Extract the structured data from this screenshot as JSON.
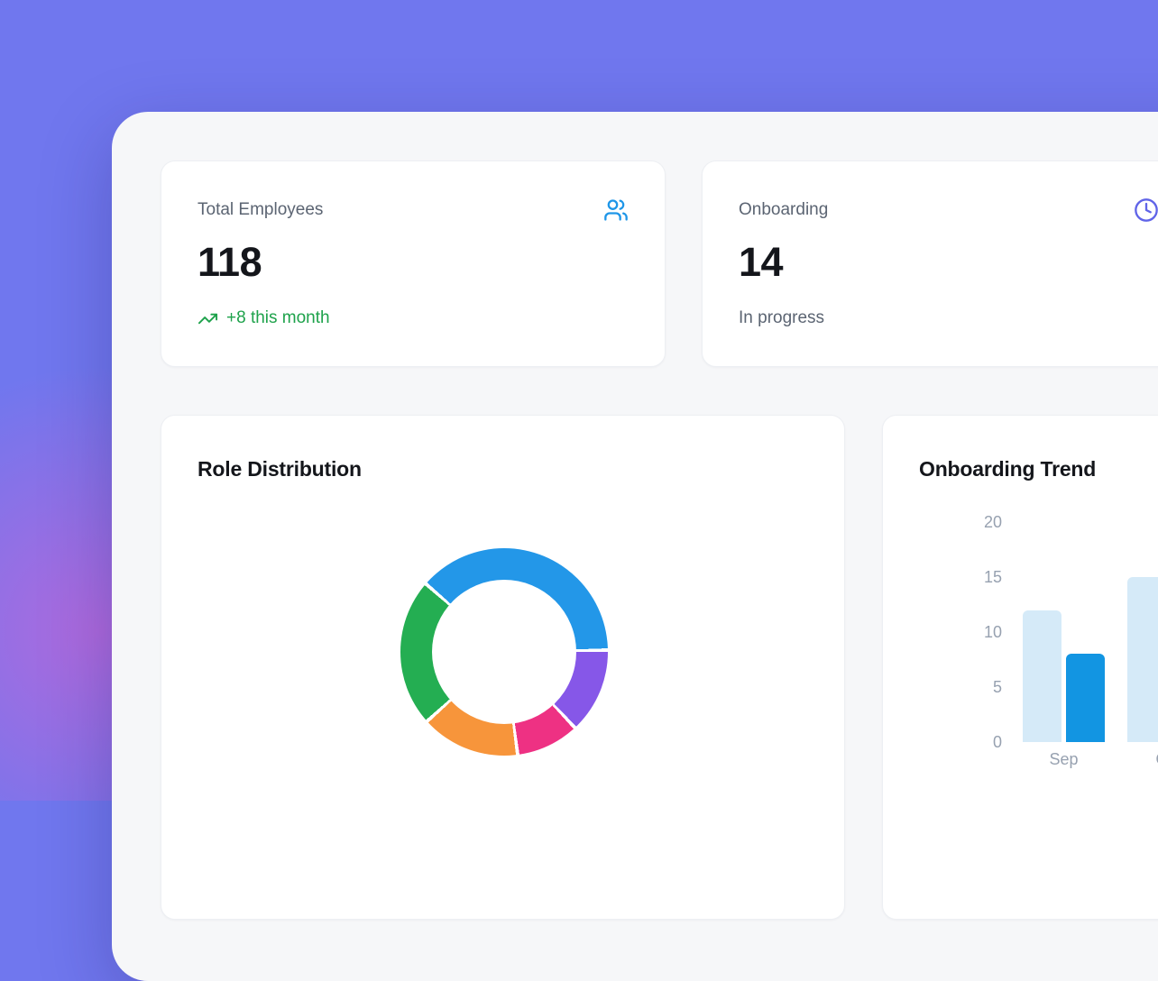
{
  "theme": {
    "background": "#7077EE",
    "blob_pink": "#EC5DCD",
    "panel": "#F6F7F9",
    "card": "#FFFFFF",
    "card_border": "#EDEFF3",
    "text_dark": "#14161B",
    "text_gray": "#5B6472",
    "text_light_gray": "#97A1B0",
    "positive_green": "#1EA24B",
    "users_icon_blue": "#1E96E8",
    "clock_icon_indigo": "#6064E8"
  },
  "stats": [
    {
      "label": "Total Employees",
      "value": "118",
      "sub": "+8 this month",
      "sub_type": "positive",
      "icon": "users"
    },
    {
      "label": "Onboarding",
      "value": "14",
      "sub": "In progress",
      "sub_type": "neutral",
      "icon": "clock"
    }
  ],
  "chart_data": {
    "role_distribution": {
      "type": "pie",
      "title": "Role Distribution",
      "donut": true,
      "legend": "none",
      "start_angle_deg": -49,
      "segments": [
        {
          "name": "segment-blue",
          "color": "#2397E8",
          "angle_deg": 138,
          "percent": 38.3
        },
        {
          "name": "segment-purple",
          "color": "#8657E8",
          "angle_deg": 48,
          "percent": 13.3
        },
        {
          "name": "segment-pink",
          "color": "#EE3183",
          "angle_deg": 35.5,
          "percent": 9.9
        },
        {
          "name": "segment-orange",
          "color": "#F7953B",
          "angle_deg": 55.5,
          "percent": 15.4
        },
        {
          "name": "segment-green",
          "color": "#24AE52",
          "angle_deg": 83,
          "percent": 23.1
        }
      ]
    },
    "onboarding_trend": {
      "type": "bar",
      "title": "Onboarding Trend",
      "categories": [
        "Sep",
        "Oct"
      ],
      "series": [
        {
          "name": "series-light",
          "color": "#D5EAF8",
          "values": [
            12,
            15
          ]
        },
        {
          "name": "series-dark",
          "color": "#1295E2",
          "values": [
            8,
            null
          ]
        }
      ],
      "ylim": [
        0,
        20
      ],
      "yticks": [
        20,
        15,
        10,
        5,
        0
      ],
      "grid": false,
      "legend": "none"
    }
  }
}
